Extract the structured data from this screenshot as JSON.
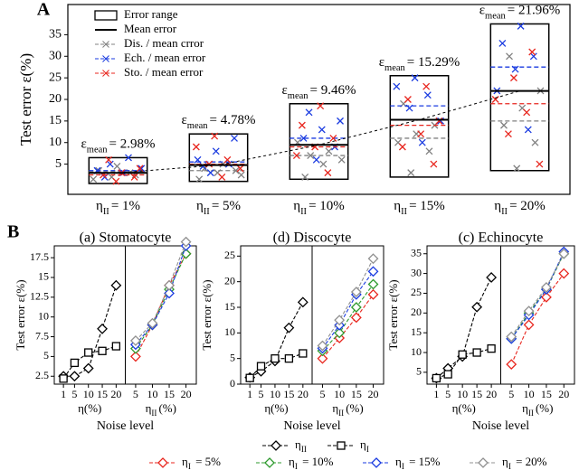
{
  "chart_data": [
    {
      "type": "box-scatter",
      "panel": "A",
      "ylabel": "Test error ε(%)",
      "ylim": [
        -2,
        42
      ],
      "yticks": [
        5,
        10,
        15,
        20,
        25,
        30,
        35
      ],
      "category_base": "η",
      "category_sub": "II",
      "categories": [
        "= 1%",
        "= 5%",
        "= 10%",
        "= 15%",
        "= 20%"
      ],
      "legend": "upper left",
      "range": {
        "name": "Error range",
        "min": [
          0.5,
          1,
          1.5,
          2,
          3.5
        ],
        "max": [
          6.5,
          12,
          19,
          25.5,
          37.5
        ]
      },
      "mean": {
        "name": "Mean error",
        "color": "#000000",
        "values": [
          2.98,
          4.78,
          9.46,
          15.29,
          21.96
        ],
        "value_label_base": "ε",
        "value_label_sub": "mean",
        "value_labels": [
          "= 2.98%",
          "= 4.78%",
          "= 9.46%",
          "= 15.29%",
          "= 21.96%"
        ]
      },
      "series": [
        {
          "name": "Dis. / mean crror",
          "color": "#808080",
          "means": [
            3.2,
            3.5,
            7,
            11,
            15
          ],
          "values": [
            [
              1.5,
              2,
              3,
              3.5,
              4.5,
              2.5
            ],
            [
              1.5,
              3,
              3.5,
              4,
              5,
              2.5
            ],
            [
              2,
              5,
              6,
              7,
              8,
              10
            ],
            [
              3,
              8,
              10,
              12,
              14,
              19
            ],
            [
              4,
              10,
              14,
              18,
              22,
              30
            ]
          ]
        },
        {
          "name": "Ech. / mean error",
          "color": "#1a3be0",
          "means": [
            3.5,
            5.5,
            11,
            18.5,
            27.5
          ],
          "values": [
            [
              2,
              3,
              4,
              5,
              6.5,
              3.5
            ],
            [
              3,
              5,
              6,
              8,
              11,
              4.5
            ],
            [
              6,
              9,
              11,
              13,
              15,
              17
            ],
            [
              10,
              15,
              18,
              21,
              23,
              25
            ],
            [
              13,
              22,
              27,
              30,
              33,
              37
            ]
          ]
        },
        {
          "name": "Sto. / mean error",
          "color": "#e8261e",
          "means": [
            2.5,
            5,
            9,
            14,
            19
          ],
          "values": [
            [
              1,
              2,
              2.5,
              3,
              4,
              6
            ],
            [
              2,
              4,
              5,
              6,
              9,
              11.5
            ],
            [
              3,
              7,
              9,
              11,
              14,
              18.5
            ],
            [
              5,
              9,
              12,
              15,
              20,
              23
            ],
            [
              5,
              12,
              17,
              20,
              25,
              31
            ]
          ]
        }
      ]
    },
    {
      "type": "line",
      "panel": "B",
      "title": "(a) Stomatocyte",
      "ylabel": "Test error ε(%)",
      "xlabel": "Noise level",
      "ylim": [
        1.5,
        19
      ],
      "yticks": [
        2.5,
        5,
        7.5,
        10,
        12.5,
        15,
        17.5
      ],
      "left": {
        "xlabel": "η(%)",
        "x": [
          1,
          5,
          10,
          15,
          20
        ],
        "xlim": [
          -1,
          22
        ],
        "xticks": [
          1,
          5,
          10,
          15,
          20
        ],
        "series": [
          {
            "name": "η",
            "name_sub": "II",
            "color": "#000000",
            "marker": "diamond",
            "values": [
              2.5,
              2.5,
              3.5,
              8.5,
              14
            ]
          },
          {
            "name": "η",
            "name_sub": "I",
            "color": "#000000",
            "marker": "square",
            "values": [
              2.2,
              4.2,
              5.5,
              5.7,
              6.3
            ]
          }
        ]
      },
      "right": {
        "xlabel_base": "η",
        "xlabel_sub": "II",
        "xlabel_tail": "(%)",
        "x": [
          5,
          10,
          15,
          20
        ],
        "xlim": [
          3,
          22
        ],
        "xticks": [
          5,
          10,
          15,
          20
        ],
        "series": [
          {
            "name": "η",
            "name_sub": "I",
            "name_tail": " = 5%",
            "color": "#e8261e",
            "marker": "diamond",
            "values": [
              5,
              9,
              14,
              18
            ]
          },
          {
            "name": "η",
            "name_sub": "I",
            "name_tail": " = 10%",
            "color": "#2e9a2e",
            "marker": "diamond",
            "values": [
              6,
              9,
              13.5,
              18
            ]
          },
          {
            "name": "η",
            "name_sub": "I",
            "name_tail": " = 15%",
            "color": "#1a3be0",
            "marker": "diamond",
            "values": [
              6.5,
              9,
              13,
              19
            ]
          },
          {
            "name": "η",
            "name_sub": "I",
            "name_tail": " = 20%",
            "color": "#909090",
            "marker": "diamond",
            "values": [
              7,
              9.2,
              14,
              19.5
            ]
          }
        ]
      }
    },
    {
      "type": "line",
      "title": "(d) Discocyte",
      "ylabel": "Test error ε(%)",
      "xlabel": "Noise level",
      "ylim": [
        0,
        27
      ],
      "yticks": [
        0,
        5,
        10,
        15,
        20,
        25
      ],
      "left": {
        "xlabel": "η(%)",
        "x": [
          1,
          5,
          10,
          15,
          20
        ],
        "xlim": [
          -1,
          22
        ],
        "xticks": [
          1,
          5,
          10,
          15,
          20
        ],
        "series": [
          {
            "name": "η",
            "name_sub": "II",
            "color": "#000000",
            "marker": "diamond",
            "values": [
              1.3,
              2.5,
              4.5,
              11,
              16
            ]
          },
          {
            "name": "η",
            "name_sub": "I",
            "color": "#000000",
            "marker": "square",
            "values": [
              1.2,
              3.5,
              5,
              5,
              6
            ]
          }
        ]
      },
      "right": {
        "xlabel_base": "η",
        "xlabel_sub": "II",
        "xlabel_tail": "(%)",
        "x": [
          5,
          10,
          15,
          20
        ],
        "xlim": [
          3,
          22
        ],
        "xticks": [
          5,
          10,
          15,
          20
        ],
        "series": [
          {
            "name": "η",
            "name_sub": "I",
            "name_tail": " = 5%",
            "color": "#e8261e",
            "marker": "diamond",
            "values": [
              5,
              9,
              13,
              17.5
            ]
          },
          {
            "name": "η",
            "name_sub": "I",
            "name_tail": " = 10%",
            "color": "#2e9a2e",
            "marker": "diamond",
            "values": [
              6.5,
              10,
              15,
              19.5
            ]
          },
          {
            "name": "η",
            "name_sub": "I",
            "name_tail": " = 15%",
            "color": "#1a3be0",
            "marker": "diamond",
            "values": [
              7,
              11.5,
              17.5,
              22
            ]
          },
          {
            "name": "η",
            "name_sub": "I",
            "name_tail": " = 20%",
            "color": "#909090",
            "marker": "diamond",
            "values": [
              7.5,
              12.5,
              18,
              24.5
            ]
          }
        ]
      }
    },
    {
      "type": "line",
      "title": "(c) Echinocyte",
      "ylabel": "Test error ε(%)",
      "xlabel": "Noise level",
      "ylim": [
        2,
        37
      ],
      "yticks": [
        5,
        10,
        15,
        20,
        25,
        30,
        35
      ],
      "left": {
        "xlabel": "η(%)",
        "x": [
          1,
          5,
          10,
          15,
          20
        ],
        "xlim": [
          -1,
          22
        ],
        "xticks": [
          1,
          5,
          10,
          15,
          20
        ],
        "series": [
          {
            "name": "η",
            "name_sub": "II",
            "color": "#000000",
            "marker": "diamond",
            "values": [
              3.5,
              6,
              9,
              21.5,
              29
            ]
          },
          {
            "name": "η",
            "name_sub": "I",
            "color": "#000000",
            "marker": "square",
            "values": [
              3.5,
              4.5,
              9.5,
              10,
              11
            ]
          }
        ]
      },
      "right": {
        "xlabel_base": "η",
        "xlabel_sub": "II",
        "xlabel_tail": "(%)",
        "x": [
          5,
          10,
          15,
          20
        ],
        "xlim": [
          3,
          22
        ],
        "xticks": [
          5,
          10,
          15,
          20
        ],
        "series": [
          {
            "name": "η",
            "name_sub": "I",
            "name_tail": " = 5%",
            "color": "#e8261e",
            "marker": "diamond",
            "values": [
              7,
              17,
              24,
              30
            ]
          },
          {
            "name": "η",
            "name_sub": "I",
            "name_tail": " = 10%",
            "color": "#2e9a2e",
            "marker": "diamond",
            "values": [
              13.5,
              20,
              26,
              35
            ]
          },
          {
            "name": "η",
            "name_sub": "I",
            "name_tail": " = 15%",
            "color": "#1a3be0",
            "marker": "diamond",
            "values": [
              13.5,
              19.5,
              26,
              35.5
            ]
          },
          {
            "name": "η",
            "name_sub": "I",
            "name_tail": " = 20%",
            "color": "#909090",
            "marker": "diamond",
            "values": [
              14,
              20.5,
              26.5,
              35
            ]
          }
        ]
      }
    }
  ]
}
